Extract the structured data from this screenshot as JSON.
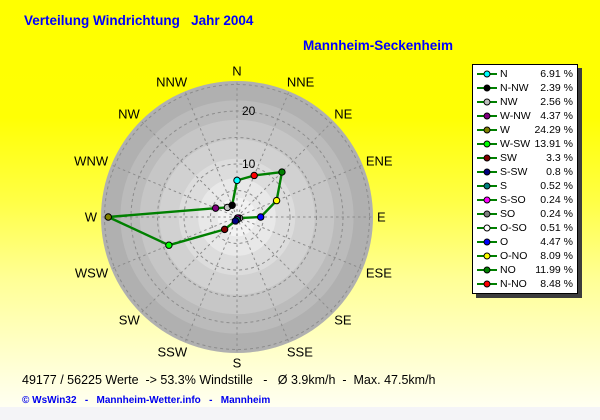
{
  "title": "Verteilung Windrichtung   Jahr 2004",
  "subtitle": "Mannheim-Seckenheim",
  "footer": {
    "stats": "49177 / 56225 Werte  -> 53.3% Windstille   -   Ø 3.9km/h  -  Max. 47.5km/h",
    "credit": "© WsWin32   -   Mannheim-Wetter.info   -   Mannheim"
  },
  "colors": {
    "title_text": "#0000ff",
    "series_line": "#008000",
    "background_top": "#ffff00",
    "background_bottom": "#fffff6",
    "legend_background": "#ffffff",
    "plot_edge_gray": "#b0b0b0",
    "plot_center_gray": "#f2f2f2",
    "grid_gray": "#8c8c8c"
  },
  "chart_data": {
    "type": "radar",
    "title": "Verteilung Windrichtung Jahr 2004",
    "subtitle": "Mannheim-Seckenheim",
    "units": "%",
    "grid": "dashed",
    "legend_position": "right",
    "categories": [
      "N",
      "NNE",
      "NE",
      "ENE",
      "E",
      "ESE",
      "SE",
      "SSE",
      "S",
      "SSW",
      "SW",
      "WSW",
      "W",
      "WNW",
      "NW",
      "NNW"
    ],
    "values": [
      6.91,
      8.48,
      11.99,
      8.09,
      4.47,
      0.51,
      0.24,
      0.24,
      0.52,
      0.8,
      3.3,
      13.91,
      24.29,
      4.37,
      2.56,
      2.39
    ],
    "point_colors": [
      "#00ffff",
      "#ff0000",
      "#008000",
      "#ffff00",
      "#0000ff",
      "#ffffff",
      "#808080",
      "#ff00ff",
      "#008080",
      "#000080",
      "#800000",
      "#00ff00",
      "#808000",
      "#800080",
      "#c0c0c0",
      "#000000"
    ],
    "series_color": "#008000",
    "radial_axis": {
      "tick_labels": [
        10,
        20
      ],
      "ring_step": 5,
      "rings": [
        5,
        10,
        15,
        20,
        25
      ],
      "max": 25
    },
    "legend": [
      {
        "label": "N",
        "value": 6.91,
        "value_label": "6.91 %",
        "marker_color": "#00ffff"
      },
      {
        "label": "N-NW",
        "value": 2.39,
        "value_label": "2.39 %",
        "marker_color": "#000000"
      },
      {
        "label": "NW",
        "value": 2.56,
        "value_label": "2.56 %",
        "marker_color": "#c0c0c0"
      },
      {
        "label": "W-NW",
        "value": 4.37,
        "value_label": "4.37 %",
        "marker_color": "#800080"
      },
      {
        "label": "W",
        "value": 24.29,
        "value_label": "24.29 %",
        "marker_color": "#808000"
      },
      {
        "label": "W-SW",
        "value": 13.91,
        "value_label": "13.91 %",
        "marker_color": "#00ff00"
      },
      {
        "label": "SW",
        "value": 3.3,
        "value_label": "3.3 %",
        "marker_color": "#800000"
      },
      {
        "label": "S-SW",
        "value": 0.8,
        "value_label": "0.8 %",
        "marker_color": "#000080"
      },
      {
        "label": "S",
        "value": 0.52,
        "value_label": "0.52 %",
        "marker_color": "#008080"
      },
      {
        "label": "S-SO",
        "value": 0.24,
        "value_label": "0.24 %",
        "marker_color": "#ff00ff"
      },
      {
        "label": "SO",
        "value": 0.24,
        "value_label": "0.24 %",
        "marker_color": "#808080"
      },
      {
        "label": "O-SO",
        "value": 0.51,
        "value_label": "0.51 %",
        "marker_color": "#ffffff"
      },
      {
        "label": "O",
        "value": 4.47,
        "value_label": "4.47 %",
        "marker_color": "#0000ff"
      },
      {
        "label": "O-NO",
        "value": 8.09,
        "value_label": "8.09 %",
        "marker_color": "#ffff00"
      },
      {
        "label": "NO",
        "value": 11.99,
        "value_label": "11.99 %",
        "marker_color": "#008000"
      },
      {
        "label": "N-NO",
        "value": 8.48,
        "value_label": "8.48 %",
        "marker_color": "#ff0000"
      }
    ]
  }
}
